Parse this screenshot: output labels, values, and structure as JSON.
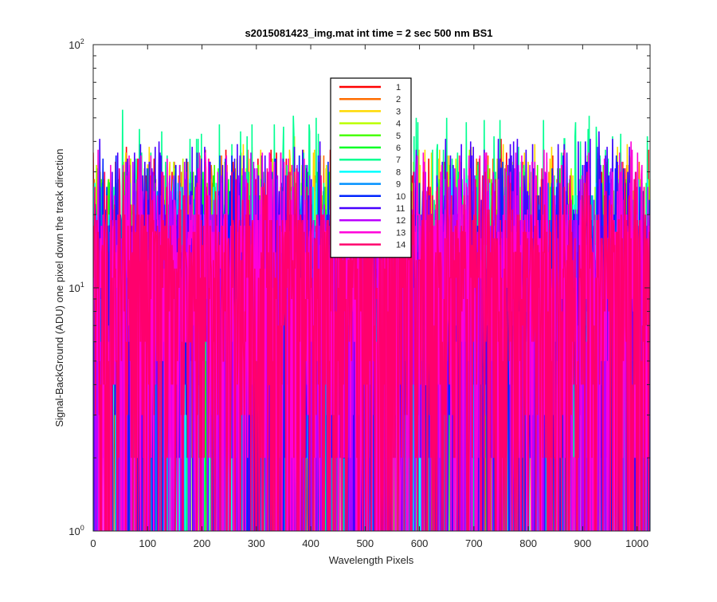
{
  "chart_data": {
    "type": "line",
    "title": "s2015081423_img.mat int time = 2 sec  500 nm BS1",
    "xlabel": "Wavelength Pixels",
    "ylabel": "Signal-BackGround (ADU) one pixel down the track direction",
    "xlim": [
      0,
      1024
    ],
    "ylim": [
      1,
      100
    ],
    "y_scale": "log",
    "grid": false,
    "legend_position": "top-center",
    "x_ticks": [
      0,
      100,
      200,
      300,
      400,
      500,
      600,
      700,
      800,
      900,
      1000
    ],
    "x_tick_labels": [
      "0",
      "100",
      "200",
      "300",
      "400",
      "500",
      "600",
      "700",
      "800",
      "900",
      "1000"
    ],
    "y_ticks": [
      1,
      10,
      100
    ],
    "y_tick_labels": [
      {
        "base": "10",
        "exp": "0"
      },
      {
        "base": "10",
        "exp": "1"
      },
      {
        "base": "10",
        "exp": "2"
      }
    ],
    "x_points": 1024,
    "value_range_note": "integer ADU values, mostly between 1 and ~45 per pixel, high-frequency noise",
    "series": [
      {
        "name": "1",
        "color": "#ff0000",
        "approx_max": 41
      },
      {
        "name": "2",
        "color": "#ff6d00",
        "approx_max": 38
      },
      {
        "name": "3",
        "color": "#ffd900",
        "approx_max": 42
      },
      {
        "name": "4",
        "color": "#bbff00",
        "approx_max": 37
      },
      {
        "name": "5",
        "color": "#48ff00",
        "approx_max": 35
      },
      {
        "name": "6",
        "color": "#00ff24",
        "approx_max": 33
      },
      {
        "name": "7",
        "color": "#00ff91",
        "approx_max": 54
      },
      {
        "name": "8",
        "color": "#00ffff",
        "approx_max": 31
      },
      {
        "name": "9",
        "color": "#0091ff",
        "approx_max": 30
      },
      {
        "name": "10",
        "color": "#0024ff",
        "approx_max": 38
      },
      {
        "name": "11",
        "color": "#4800ff",
        "approx_max": 44
      },
      {
        "name": "12",
        "color": "#bb00ff",
        "approx_max": 36
      },
      {
        "name": "13",
        "color": "#ff00d9",
        "approx_max": 40
      },
      {
        "name": "14",
        "color": "#ff006d",
        "approx_max": 34
      }
    ]
  }
}
